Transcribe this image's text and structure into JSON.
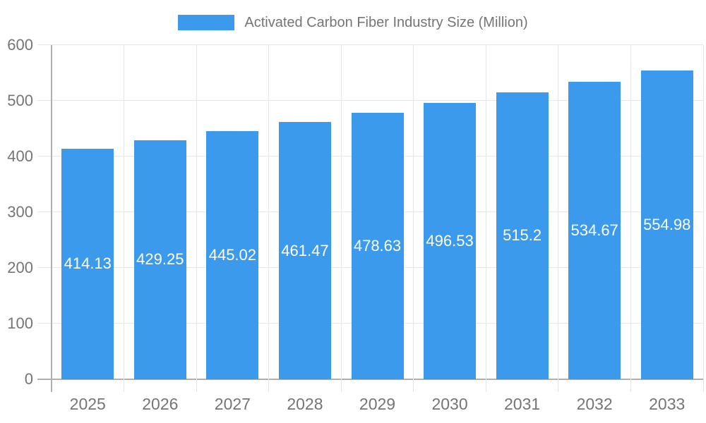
{
  "chart_data": {
    "type": "bar",
    "title": "Activated Carbon Fiber Industry Size (Million)",
    "legend": {
      "label": "Activated Carbon Fiber Industry Size (Million)",
      "position": "top"
    },
    "categories": [
      "2025",
      "2026",
      "2027",
      "2028",
      "2029",
      "2030",
      "2031",
      "2032",
      "2033"
    ],
    "series": [
      {
        "name": "Activated Carbon Fiber Industry Size (Million)",
        "values": [
          414.13,
          429.25,
          445.02,
          461.47,
          478.63,
          496.53,
          515.2,
          534.67,
          554.98
        ],
        "labels": [
          "414.13",
          "429.25",
          "445.02",
          "461.47",
          "478.63",
          "496.53",
          "515.2",
          "534.67",
          "554.98"
        ]
      }
    ],
    "xlabel": "",
    "ylabel": "",
    "ylim": [
      0,
      600
    ],
    "yticks": [
      "0",
      "100",
      "200",
      "300",
      "400",
      "500",
      "600"
    ],
    "grid": "on",
    "colors": {
      "bar": "#3b9aec",
      "gridline": "#e6e6e6",
      "axis": "#b0b0b0",
      "axis_text": "#757575",
      "value_label": "#ffffff",
      "background": "#ffffff"
    }
  }
}
